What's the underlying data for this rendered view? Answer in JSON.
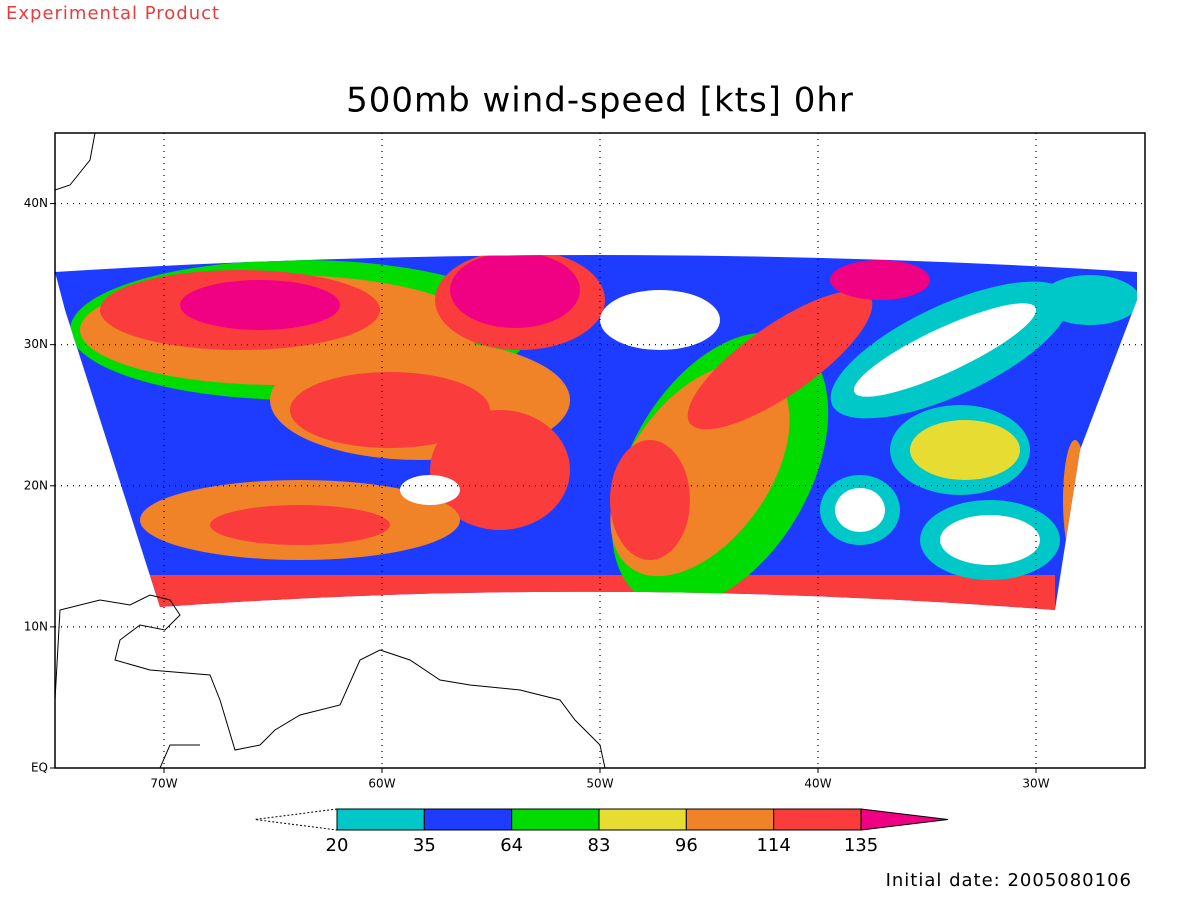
{
  "header": {
    "note": "Experimental Product"
  },
  "map": {
    "title": "500mb wind-speed [kts] 0hr",
    "xlim": [
      -75,
      -25
    ],
    "ylim": [
      0,
      45
    ],
    "xticks": [
      {
        "value": -70,
        "label": "70W"
      },
      {
        "value": -60,
        "label": "60W"
      },
      {
        "value": -50,
        "label": "50W"
      },
      {
        "value": -40,
        "label": "40W"
      },
      {
        "value": -30,
        "label": "30W"
      }
    ],
    "yticks": [
      {
        "value": 0,
        "label": "EQ"
      },
      {
        "value": 10,
        "label": "10N"
      },
      {
        "value": 20,
        "label": "20N"
      },
      {
        "value": 30,
        "label": "30N"
      },
      {
        "value": 40,
        "label": "40N"
      }
    ],
    "grid": true
  },
  "colorbar": {
    "levels": [
      20,
      35,
      64,
      83,
      96,
      114,
      135
    ],
    "colors": [
      "#ffffff",
      "#00c8c8",
      "#1e3cff",
      "#00dc00",
      "#e6dc32",
      "#f08228",
      "#fa3c3c",
      "#f00082"
    ]
  },
  "footer": {
    "initial_date": "Initial date: 2005080106"
  }
}
